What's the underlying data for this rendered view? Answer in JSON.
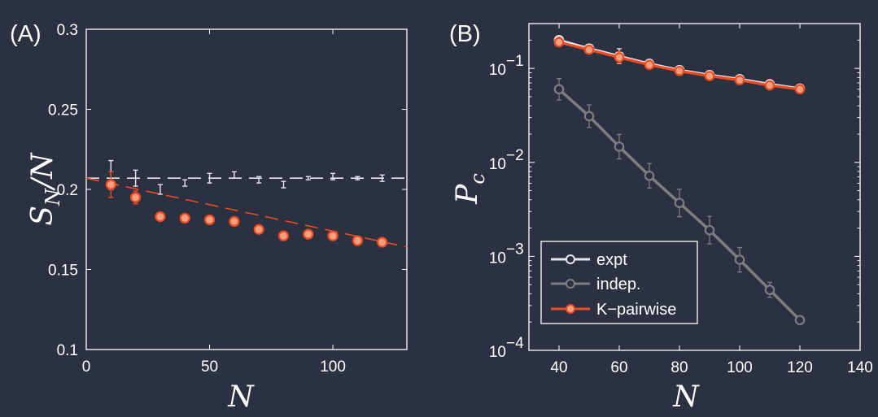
{
  "colors": {
    "background": "#2b3141",
    "axes": "#ffffff",
    "expt": "#e6e6ee",
    "indep": "#7d7d82",
    "kpairwise": "#f04a22",
    "kpairwise_face": "#f2a07e"
  },
  "chart_data": [
    {
      "panel_label": "(A)",
      "type": "scatter",
      "xlabel": "N",
      "ylabel": "S_N/N",
      "ylabel_main": "S",
      "ylabel_sub": "N",
      "ylabel_tail": "/N",
      "xlim": [
        0,
        130
      ],
      "ylim": [
        0.1,
        0.3
      ],
      "xticks": [
        0,
        50,
        100
      ],
      "xtick_labels": [
        "0",
        "50",
        "100"
      ],
      "yticks": [
        0.1,
        0.15,
        0.2,
        0.25,
        0.3
      ],
      "ytick_labels": [
        "0.1",
        "0.15",
        "0.2",
        "0.25",
        "0.3"
      ],
      "series": [
        {
          "name": "expt",
          "x": [
            10,
            20,
            30,
            40,
            50,
            60,
            70,
            80,
            90,
            100,
            110,
            120
          ],
          "values": [
            0.209,
            0.207,
            0.2,
            0.204,
            0.207,
            0.209,
            0.206,
            0.203,
            0.207,
            0.208,
            0.207,
            0.207
          ],
          "err": [
            0.009,
            0.005,
            0.003,
            0.002,
            0.003,
            0.002,
            0.002,
            0.002,
            0.001,
            0.002,
            0.001,
            0.002
          ],
          "fit": {
            "type": "constant",
            "value": 0.207
          }
        },
        {
          "name": "K-pairwise",
          "x": [
            10,
            20,
            30,
            40,
            50,
            60,
            70,
            80,
            90,
            100,
            110,
            120
          ],
          "values": [
            0.203,
            0.195,
            0.183,
            0.182,
            0.181,
            0.18,
            0.175,
            0.171,
            0.172,
            0.171,
            0.168,
            0.167
          ],
          "err": [
            0.008,
            0.004,
            0.002,
            0.002,
            0.002,
            0.002,
            0.002,
            0.002,
            0.002,
            0.002,
            0.002,
            0.002
          ],
          "fit": {
            "type": "linear",
            "x": [
              0,
              130
            ],
            "y": [
              0.207,
              0.164
            ]
          }
        }
      ]
    },
    {
      "panel_label": "(B)",
      "type": "line",
      "xlabel": "N",
      "ylabel": "P_c",
      "ylabel_main": "P",
      "ylabel_sub": "c",
      "yscale": "log",
      "xlim": [
        30,
        140
      ],
      "ylim": [
        0.0001,
        0.3
      ],
      "xticks": [
        40,
        60,
        80,
        100,
        120,
        140
      ],
      "xtick_labels": [
        "40",
        "60",
        "80",
        "100",
        "120",
        "140"
      ],
      "yticks": [
        0.0001,
        0.001,
        0.01,
        0.1
      ],
      "ytick_base": [
        "10",
        "10",
        "10",
        "10"
      ],
      "ytick_exp": [
        "−4",
        "−3",
        "−2",
        "−1"
      ],
      "legend_position": "bottom-left",
      "series": [
        {
          "name": "expt",
          "x": [
            40,
            50,
            60,
            70,
            80,
            90,
            100,
            110,
            120
          ],
          "values": [
            0.2,
            0.163,
            0.135,
            0.112,
            0.096,
            0.085,
            0.077,
            0.068,
            0.061
          ],
          "err_factor": [
            1.1,
            1.1,
            1.2,
            1.1,
            1.1,
            1.1,
            1.1,
            1.1,
            1.1
          ]
        },
        {
          "name": "indep.",
          "x": [
            40,
            50,
            60,
            70,
            80,
            90,
            100,
            110,
            120
          ],
          "values": [
            0.06,
            0.031,
            0.0147,
            0.0072,
            0.0037,
            0.0019,
            0.00092,
            0.00044,
            0.00021
          ],
          "err_factor": [
            1.3,
            1.32,
            1.35,
            1.35,
            1.4,
            1.4,
            1.35,
            1.2,
            1.08
          ]
        },
        {
          "name": "K-pairwise",
          "x": [
            40,
            50,
            60,
            70,
            80,
            90,
            100,
            110,
            120
          ],
          "values": [
            0.19,
            0.158,
            0.131,
            0.109,
            0.094,
            0.083,
            0.075,
            0.066,
            0.06
          ],
          "err_factor": [
            1.1,
            1.1,
            1.15,
            1.1,
            1.1,
            1.1,
            1.1,
            1.1,
            1.1
          ]
        }
      ],
      "legend": [
        "expt",
        "indep.",
        "K−pairwise"
      ]
    }
  ]
}
